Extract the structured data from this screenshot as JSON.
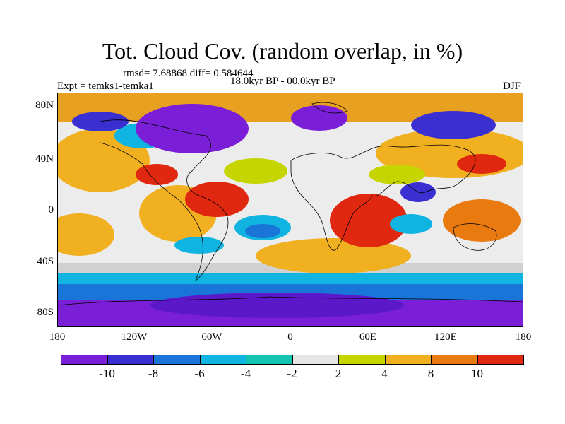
{
  "title": "Tot. Cloud Cov. (random overlap, in %)",
  "stats": "rmsd= 7.68868 diff= 0.584644",
  "experiment": "Expt = temks1-temka1",
  "period": "18.0kyr BP - 00.0kyr BP",
  "season": "DJF",
  "lat_ticks": [
    "80N",
    "40N",
    "0",
    "40S",
    "80S"
  ],
  "lon_ticks": [
    "180",
    "120W",
    "60W",
    "0",
    "60E",
    "120E",
    "180"
  ],
  "colorbar": {
    "labels": [
      "-10",
      "-8",
      "-6",
      "-4",
      "-2",
      "2",
      "4",
      "8",
      "10"
    ],
    "colors": [
      "#7a1ed8",
      "#3a2fd0",
      "#1a75d8",
      "#10b4e0",
      "#12c4b0",
      "#e6e6e6",
      "#c6d400",
      "#f0b020",
      "#e87a10",
      "#e02810"
    ]
  }
}
